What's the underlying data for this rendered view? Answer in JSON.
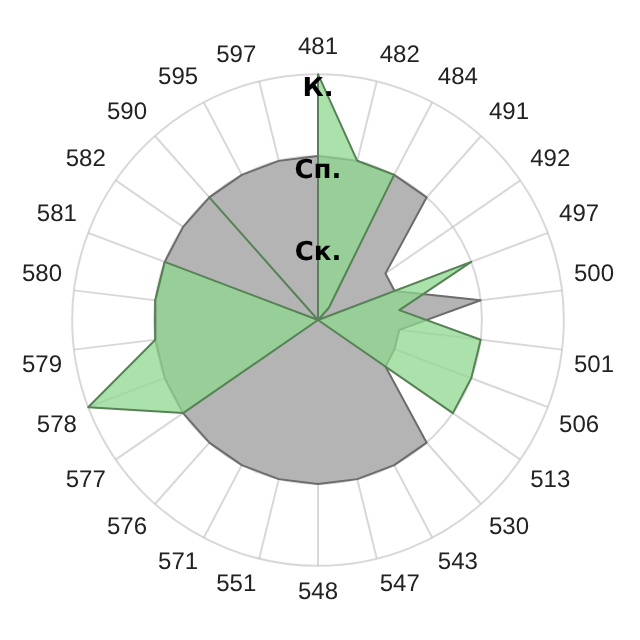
{
  "chart_data": {
    "type": "radar",
    "categories": [
      "481",
      "482",
      "484",
      "491",
      "492",
      "497",
      "500",
      "501",
      "506",
      "513",
      "530",
      "543",
      "547",
      "548",
      "551",
      "571",
      "576",
      "577",
      "578",
      "579",
      "580",
      "581",
      "582",
      "590",
      "595",
      "597"
    ],
    "series": [
      {
        "color": "#b4b4b4",
        "values": [
          2,
          2,
          2,
          2,
          1,
          1,
          2,
          1,
          1,
          1,
          2,
          2,
          2,
          2,
          2,
          2,
          2,
          2,
          2,
          2,
          2,
          2,
          2,
          2,
          2,
          2
        ]
      },
      {
        "color": "#8fd88f",
        "values": [
          3,
          2,
          2,
          0.2,
          0,
          2,
          1,
          2,
          2,
          2,
          0,
          0,
          0,
          0,
          0,
          0,
          0,
          2,
          3,
          2,
          2,
          2,
          0,
          2,
          0,
          0
        ]
      }
    ],
    "ylim": [
      0,
      3
    ],
    "yticks": [
      {
        "value": 1,
        "label": "Ск."
      },
      {
        "value": 2,
        "label": "Сп."
      },
      {
        "value": 3,
        "label": "К."
      }
    ],
    "grid": true,
    "legend": false,
    "marker": "none"
  }
}
